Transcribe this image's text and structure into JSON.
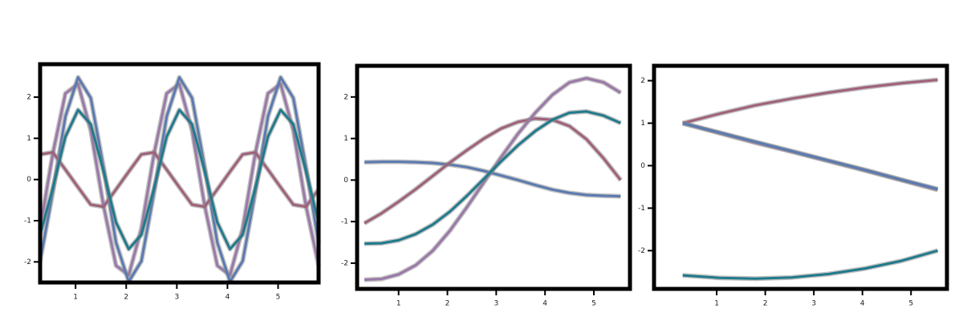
{
  "chart_data": [
    {
      "type": "line",
      "x": [
        0.3,
        0.55,
        0.8,
        1.05,
        1.3,
        1.55,
        1.8,
        2.05,
        2.3,
        2.55,
        2.8,
        3.05,
        3.3,
        3.55,
        3.8,
        4.05,
        4.3,
        4.55,
        4.8,
        5.05,
        5.3,
        5.55,
        5.8
      ],
      "xlim": [
        0.3,
        5.8
      ],
      "xticks": [
        1,
        2,
        3,
        4,
        5
      ],
      "ylim": [
        -2.5,
        2.8
      ],
      "yticks": [
        -2,
        -1,
        0,
        1,
        2
      ],
      "series": [
        {
          "color": "#9a78a8",
          "values": [
            -1.19,
            0.63,
            2.09,
            2.32,
            1.19,
            -0.63,
            -2.09,
            -2.32,
            -1.19,
            0.63,
            2.09,
            2.32,
            1.19,
            -0.63,
            -2.09,
            -2.32,
            -1.19,
            0.63,
            2.09,
            2.32,
            1.19,
            -0.63,
            -2.09
          ]
        },
        {
          "color": "#5a7ab0",
          "values": [
            -1.98,
            -0.31,
            1.53,
            2.48,
            1.98,
            0.31,
            -1.53,
            -2.48,
            -1.98,
            -0.31,
            1.53,
            2.48,
            1.98,
            0.31,
            -1.53,
            -2.48,
            -1.98,
            -0.31,
            1.53,
            2.48,
            1.98,
            0.31,
            -1.53
          ]
        },
        {
          "color": "#a0607a",
          "values": [
            0.61,
            0.66,
            0.24,
            -0.19,
            -0.61,
            -0.66,
            -0.24,
            0.19,
            0.61,
            0.66,
            0.24,
            -0.19,
            -0.61,
            -0.66,
            -0.24,
            0.19,
            0.61,
            0.66,
            0.24,
            -0.19,
            -0.61,
            -0.66,
            -0.24
          ]
        },
        {
          "color": "#1f7a8c",
          "values": [
            -1.34,
            -0.21,
            1.04,
            1.69,
            1.34,
            0.21,
            -1.04,
            -1.69,
            -1.34,
            -0.21,
            1.04,
            1.69,
            1.34,
            0.21,
            -1.04,
            -1.69,
            -1.34,
            -0.21,
            1.04,
            1.69,
            1.34,
            0.21,
            -1.04
          ]
        }
      ]
    },
    {
      "type": "line",
      "x": [
        0.3,
        0.65,
        1.0,
        1.35,
        1.7,
        2.05,
        2.4,
        2.75,
        3.1,
        3.45,
        3.8,
        4.15,
        4.5,
        4.85,
        5.2,
        5.55
      ],
      "xlim": [
        0.15,
        5.74
      ],
      "xticks": [
        1,
        2,
        3,
        4,
        5
      ],
      "ylim": [
        -2.62,
        2.75
      ],
      "yticks": [
        -2,
        -1,
        0,
        1,
        2
      ],
      "series": [
        {
          "color": "#5a7ab0",
          "values": [
            0.43,
            0.44,
            0.44,
            0.43,
            0.41,
            0.37,
            0.31,
            0.22,
            0.11,
            0.0,
            -0.12,
            -0.23,
            -0.31,
            -0.36,
            -0.38,
            -0.39
          ]
        },
        {
          "color": "#a0607a",
          "values": [
            -1.04,
            -0.8,
            -0.52,
            -0.22,
            0.1,
            0.42,
            0.72,
            1.0,
            1.24,
            1.4,
            1.48,
            1.45,
            1.3,
            0.98,
            0.52,
            0.0
          ]
        },
        {
          "color": "#9a78a8",
          "values": [
            -2.4,
            -2.38,
            -2.27,
            -2.05,
            -1.7,
            -1.22,
            -0.65,
            -0.05,
            0.55,
            1.12,
            1.62,
            2.05,
            2.35,
            2.45,
            2.35,
            2.1
          ]
        },
        {
          "color": "#1f7a8c",
          "values": [
            -1.53,
            -1.52,
            -1.45,
            -1.3,
            -1.07,
            -0.76,
            -0.38,
            0.03,
            0.45,
            0.84,
            1.18,
            1.45,
            1.62,
            1.65,
            1.55,
            1.37
          ]
        }
      ]
    },
    {
      "type": "line",
      "x": [
        0.3,
        1.05,
        1.8,
        2.55,
        3.3,
        4.05,
        4.8,
        5.55
      ],
      "xlim": [
        -0.29,
        5.74
      ],
      "xticks": [
        1,
        2,
        3,
        4,
        5
      ],
      "ylim": [
        -2.9,
        2.35
      ],
      "yticks": [
        -2,
        -1,
        0,
        1,
        2
      ],
      "series": [
        {
          "color": "#a0607a",
          "values": [
            1.0,
            1.22,
            1.42,
            1.58,
            1.72,
            1.84,
            1.94,
            2.02
          ]
        },
        {
          "color": "#9a78a8",
          "values": [
            1.0,
            0.77,
            0.54,
            0.33,
            0.11,
            -0.11,
            -0.34,
            -0.57
          ]
        },
        {
          "color": "#5a7ab0",
          "values": [
            1.0,
            0.78,
            0.56,
            0.34,
            0.12,
            -0.1,
            -0.33,
            -0.55
          ]
        },
        {
          "color": "#1f7a8c",
          "values": [
            -2.58,
            -2.64,
            -2.66,
            -2.63,
            -2.55,
            -2.42,
            -2.24,
            -2.0
          ]
        }
      ]
    }
  ]
}
